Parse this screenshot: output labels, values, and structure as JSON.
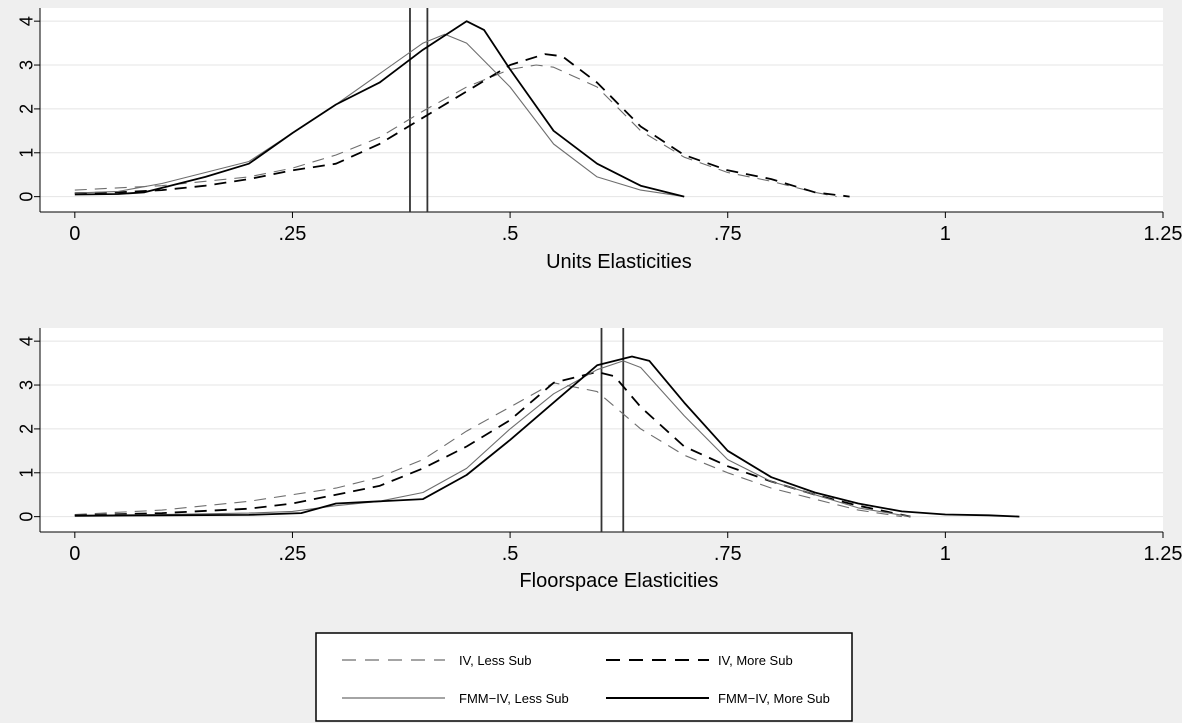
{
  "chart_data": [
    {
      "type": "line",
      "xlabel": "Units Elasticities",
      "ylabel": "",
      "xlim": [
        -0.04,
        1.25
      ],
      "ylim": [
        -0.35,
        4.3
      ],
      "xticks": [
        0,
        0.25,
        0.5,
        0.75,
        1,
        1.25
      ],
      "xtick_labels": [
        "0",
        ".25",
        ".5",
        ".75",
        "1",
        "1.25"
      ],
      "yticks": [
        0,
        1,
        2,
        3,
        4
      ],
      "ytick_labels": [
        "0",
        "1",
        "2",
        "3",
        "4"
      ],
      "grid": true,
      "vlines": [
        0.385,
        0.405
      ],
      "series": [
        {
          "name": "IV, Less Sub",
          "style": "dashed-thin",
          "x": [
            0,
            0.1,
            0.2,
            0.25,
            0.3,
            0.35,
            0.4,
            0.45,
            0.5,
            0.53,
            0.55,
            0.6,
            0.65,
            0.7,
            0.75,
            0.8,
            0.85,
            0.875
          ],
          "y": [
            0.15,
            0.25,
            0.45,
            0.65,
            0.95,
            1.35,
            1.95,
            2.5,
            2.9,
            3.0,
            2.95,
            2.5,
            1.5,
            0.9,
            0.55,
            0.35,
            0.1,
            0.0
          ]
        },
        {
          "name": "IV, More Sub",
          "style": "dashed-thick",
          "x": [
            0,
            0.05,
            0.1,
            0.15,
            0.2,
            0.25,
            0.3,
            0.35,
            0.4,
            0.45,
            0.5,
            0.54,
            0.56,
            0.6,
            0.65,
            0.7,
            0.75,
            0.8,
            0.85,
            0.89
          ],
          "y": [
            0.08,
            0.1,
            0.15,
            0.25,
            0.4,
            0.6,
            0.75,
            1.2,
            1.8,
            2.4,
            3.0,
            3.25,
            3.2,
            2.6,
            1.6,
            0.95,
            0.6,
            0.4,
            0.1,
            0.0
          ]
        },
        {
          "name": "FMM-IV, Less Sub",
          "style": "solid-thin",
          "x": [
            0,
            0.05,
            0.1,
            0.15,
            0.2,
            0.25,
            0.3,
            0.35,
            0.4,
            0.425,
            0.45,
            0.5,
            0.55,
            0.6,
            0.65,
            0.7
          ],
          "y": [
            0.08,
            0.12,
            0.3,
            0.55,
            0.8,
            1.45,
            2.1,
            2.8,
            3.5,
            3.7,
            3.5,
            2.5,
            1.2,
            0.45,
            0.15,
            0.0
          ]
        },
        {
          "name": "FMM-IV, More Sub",
          "style": "solid-thick",
          "x": [
            0,
            0.05,
            0.08,
            0.1,
            0.15,
            0.2,
            0.25,
            0.3,
            0.35,
            0.4,
            0.45,
            0.47,
            0.5,
            0.55,
            0.6,
            0.65,
            0.7
          ],
          "y": [
            0.05,
            0.06,
            0.1,
            0.2,
            0.45,
            0.75,
            1.45,
            2.1,
            2.6,
            3.35,
            4.0,
            3.8,
            2.9,
            1.5,
            0.75,
            0.25,
            0.0
          ]
        }
      ]
    },
    {
      "type": "line",
      "xlabel": "Floorspace Elasticities",
      "ylabel": "",
      "xlim": [
        -0.04,
        1.25
      ],
      "ylim": [
        -0.35,
        4.3
      ],
      "xticks": [
        0,
        0.25,
        0.5,
        0.75,
        1,
        1.25
      ],
      "xtick_labels": [
        "0",
        ".25",
        ".5",
        ".75",
        "1",
        "1.25"
      ],
      "yticks": [
        0,
        1,
        2,
        3,
        4
      ],
      "ytick_labels": [
        "0",
        "1",
        "2",
        "3",
        "4"
      ],
      "grid": true,
      "vlines": [
        0.605,
        0.63
      ],
      "series": [
        {
          "name": "IV, Less Sub",
          "style": "dashed-thin",
          "x": [
            0,
            0.1,
            0.2,
            0.25,
            0.3,
            0.35,
            0.4,
            0.45,
            0.5,
            0.55,
            0.6,
            0.65,
            0.7,
            0.75,
            0.8,
            0.85,
            0.9,
            0.95
          ],
          "y": [
            0.05,
            0.15,
            0.35,
            0.5,
            0.65,
            0.9,
            1.3,
            1.95,
            2.5,
            3.05,
            2.85,
            2.0,
            1.4,
            1.0,
            0.65,
            0.4,
            0.15,
            0.0
          ]
        },
        {
          "name": "IV, More Sub",
          "style": "dashed-thick",
          "x": [
            0,
            0.1,
            0.2,
            0.25,
            0.3,
            0.35,
            0.4,
            0.45,
            0.5,
            0.55,
            0.6,
            0.62,
            0.65,
            0.7,
            0.75,
            0.8,
            0.85,
            0.9,
            0.96
          ],
          "y": [
            0.03,
            0.08,
            0.18,
            0.3,
            0.5,
            0.7,
            1.1,
            1.6,
            2.2,
            3.05,
            3.3,
            3.2,
            2.5,
            1.6,
            1.15,
            0.8,
            0.5,
            0.25,
            0.0
          ]
        },
        {
          "name": "FMM-IV, Less Sub",
          "style": "solid-thin",
          "x": [
            0,
            0.1,
            0.2,
            0.25,
            0.3,
            0.35,
            0.4,
            0.45,
            0.5,
            0.55,
            0.6,
            0.63,
            0.65,
            0.7,
            0.75,
            0.8,
            0.85,
            0.9,
            0.96
          ],
          "y": [
            0.03,
            0.05,
            0.08,
            0.12,
            0.25,
            0.35,
            0.55,
            1.1,
            2.0,
            2.8,
            3.35,
            3.55,
            3.4,
            2.3,
            1.3,
            0.8,
            0.5,
            0.2,
            0.0
          ]
        },
        {
          "name": "FMM-IV, More Sub",
          "style": "solid-thick",
          "x": [
            0,
            0.1,
            0.2,
            0.26,
            0.3,
            0.35,
            0.4,
            0.45,
            0.5,
            0.55,
            0.6,
            0.64,
            0.66,
            0.7,
            0.75,
            0.8,
            0.85,
            0.9,
            0.95,
            1.0,
            1.05,
            1.085
          ],
          "y": [
            0.02,
            0.03,
            0.04,
            0.08,
            0.3,
            0.35,
            0.4,
            0.95,
            1.75,
            2.6,
            3.45,
            3.65,
            3.55,
            2.6,
            1.5,
            0.9,
            0.55,
            0.3,
            0.12,
            0.05,
            0.03,
            0.0
          ]
        }
      ]
    }
  ],
  "legend": {
    "items": [
      {
        "label": "IV, Less Sub",
        "style": "dashed-thin"
      },
      {
        "label": "IV, More Sub",
        "style": "dashed-thick"
      },
      {
        "label": "FMM−IV, Less Sub",
        "style": "solid-thin"
      },
      {
        "label": "FMM−IV, More Sub",
        "style": "solid-thick"
      }
    ]
  },
  "colors": {
    "background": "#efefef",
    "plot_area": "#ffffff",
    "grid": "#e4e4e4",
    "thin_line": "#6e6e6e",
    "thick_line": "#000000",
    "vline": "#333333"
  }
}
